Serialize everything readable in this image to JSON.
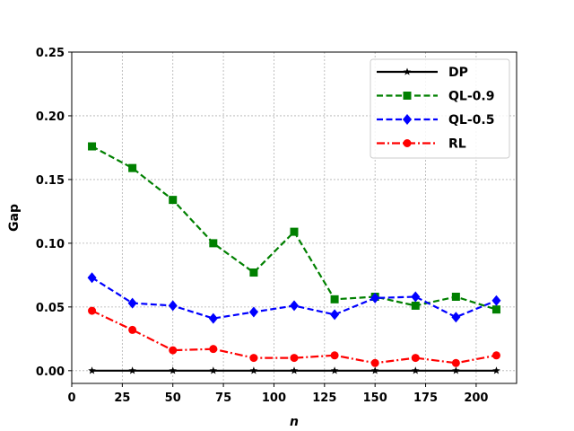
{
  "chart_data": {
    "type": "line",
    "x": [
      10,
      30,
      50,
      70,
      90,
      110,
      130,
      150,
      170,
      190,
      210
    ],
    "series": [
      {
        "name": "DP",
        "color": "#000000",
        "linestyle": "solid",
        "marker": "star",
        "values": [
          0,
          0,
          0,
          0,
          0,
          0,
          0,
          0,
          0,
          0,
          0
        ]
      },
      {
        "name": "QL-0.9",
        "color": "#008000",
        "linestyle": "dashed",
        "marker": "square",
        "values": [
          0.176,
          0.159,
          0.134,
          0.1,
          0.077,
          0.109,
          0.056,
          0.058,
          0.051,
          0.058,
          0.048
        ]
      },
      {
        "name": "QL-0.5",
        "color": "#0000ff",
        "linestyle": "dashed",
        "marker": "diamond",
        "values": [
          0.073,
          0.053,
          0.051,
          0.041,
          0.046,
          0.051,
          0.044,
          0.057,
          0.058,
          0.042,
          0.055
        ]
      },
      {
        "name": "RL",
        "color": "#ff0000",
        "linestyle": "dashdot",
        "marker": "circle",
        "values": [
          0.047,
          0.032,
          0.016,
          0.017,
          0.01,
          0.01,
          0.012,
          0.006,
          0.01,
          0.006,
          0.012
        ]
      }
    ],
    "xlabel": "n",
    "ylabel": "Gap",
    "xlim": [
      0,
      220
    ],
    "ylim": [
      -0.01,
      0.25
    ],
    "xticks": [
      0,
      25,
      50,
      75,
      100,
      125,
      150,
      175,
      200
    ],
    "xtick_labels": [
      "0",
      "25",
      "50",
      "75",
      "100",
      "125",
      "150",
      "175",
      "200"
    ],
    "yticks": [
      0,
      0.05,
      0.1,
      0.15,
      0.2,
      0.25
    ],
    "ytick_labels": [
      "0.00",
      "0.05",
      "0.10",
      "0.15",
      "0.20",
      "0.25"
    ],
    "grid": true,
    "legend": "top-right"
  }
}
